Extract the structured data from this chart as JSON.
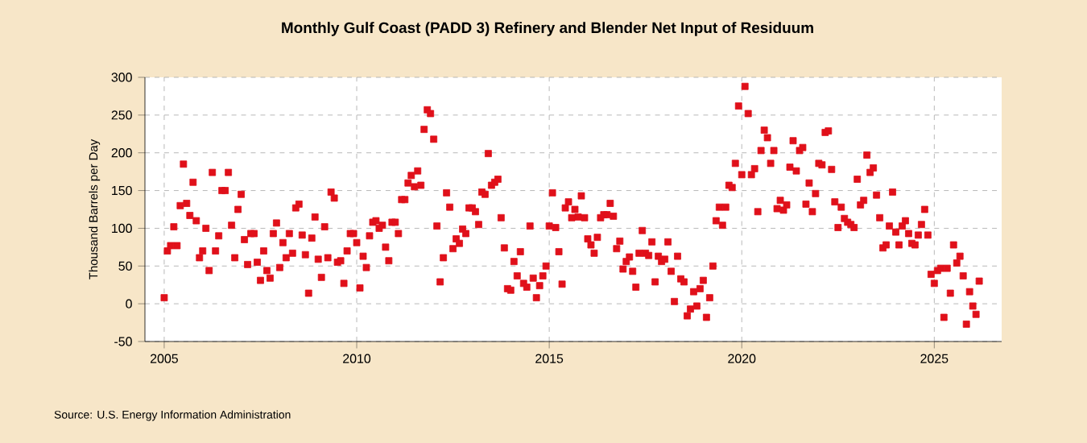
{
  "chart_data": {
    "type": "scatter",
    "title": "Monthly Gulf Coast (PADD 3) Refinery and Blender Net Input of Residuum",
    "ylabel": "Thousand Barrels per Day",
    "annotations": [
      "Source: U.S. Energy Information Administration"
    ],
    "x": [
      "2005-01",
      "2005-02",
      "2005-03",
      "2005-04",
      "2005-05",
      "2005-06",
      "2005-07",
      "2005-08",
      "2005-09",
      "2005-10",
      "2005-11",
      "2005-12",
      "2006-01",
      "2006-02",
      "2006-03",
      "2006-04",
      "2006-05",
      "2006-06",
      "2006-07",
      "2006-08",
      "2006-09",
      "2006-10",
      "2006-11",
      "2006-12",
      "2007-01",
      "2007-02",
      "2007-03",
      "2007-04",
      "2007-05",
      "2007-06",
      "2007-07",
      "2007-08",
      "2007-09",
      "2007-10",
      "2007-11",
      "2007-12",
      "2008-01",
      "2008-02",
      "2008-03",
      "2008-04",
      "2008-05",
      "2008-06",
      "2008-07",
      "2008-08",
      "2008-09",
      "2008-10",
      "2008-11",
      "2008-12",
      "2009-01",
      "2009-02",
      "2009-03",
      "2009-04",
      "2009-05",
      "2009-06",
      "2009-07",
      "2009-08",
      "2009-09",
      "2009-10",
      "2009-11",
      "2009-12",
      "2010-01",
      "2010-02",
      "2010-03",
      "2010-04",
      "2010-05",
      "2010-06",
      "2010-07",
      "2010-08",
      "2010-09",
      "2010-10",
      "2010-11",
      "2010-12",
      "2011-01",
      "2011-02",
      "2011-03",
      "2011-04",
      "2011-05",
      "2011-06",
      "2011-07",
      "2011-08",
      "2011-09",
      "2011-10",
      "2011-11",
      "2011-12",
      "2012-01",
      "2012-02",
      "2012-03",
      "2012-04",
      "2012-05",
      "2012-06",
      "2012-07",
      "2012-08",
      "2012-09",
      "2012-10",
      "2012-11",
      "2012-12",
      "2013-01",
      "2013-02",
      "2013-03",
      "2013-04",
      "2013-05",
      "2013-06",
      "2013-07",
      "2013-08",
      "2013-09",
      "2013-10",
      "2013-11",
      "2013-12",
      "2014-01",
      "2014-02",
      "2014-03",
      "2014-04",
      "2014-05",
      "2014-06",
      "2014-07",
      "2014-08",
      "2014-09",
      "2014-10",
      "2014-11",
      "2014-12",
      "2015-01",
      "2015-02",
      "2015-03",
      "2015-04",
      "2015-05",
      "2015-06",
      "2015-07",
      "2015-08",
      "2015-09",
      "2015-10",
      "2015-11",
      "2015-12",
      "2016-01",
      "2016-02",
      "2016-03",
      "2016-04",
      "2016-05",
      "2016-06",
      "2016-07",
      "2016-08",
      "2016-09",
      "2016-10",
      "2016-11",
      "2016-12",
      "2017-01",
      "2017-02",
      "2017-03",
      "2017-04",
      "2017-05",
      "2017-06",
      "2017-07",
      "2017-08",
      "2017-09",
      "2017-10",
      "2017-11",
      "2017-12",
      "2018-01",
      "2018-02",
      "2018-03",
      "2018-04",
      "2018-05",
      "2018-06",
      "2018-07",
      "2018-08",
      "2018-09",
      "2018-10",
      "2018-11",
      "2018-12",
      "2019-01",
      "2019-02",
      "2019-03",
      "2019-04",
      "2019-05",
      "2019-06",
      "2019-07",
      "2019-08",
      "2019-09",
      "2019-10",
      "2019-11",
      "2019-12",
      "2020-01",
      "2020-02",
      "2020-03",
      "2020-04",
      "2020-05",
      "2020-06",
      "2020-07",
      "2020-08",
      "2020-09",
      "2020-10",
      "2020-11",
      "2020-12",
      "2021-01",
      "2021-02",
      "2021-03",
      "2021-04",
      "2021-05",
      "2021-06",
      "2021-07",
      "2021-08",
      "2021-09",
      "2021-10",
      "2021-11",
      "2021-12",
      "2022-01",
      "2022-02",
      "2022-03",
      "2022-04",
      "2022-05",
      "2022-06",
      "2022-07",
      "2022-08",
      "2022-09",
      "2022-10",
      "2022-11",
      "2022-12",
      "2023-01",
      "2023-02",
      "2023-03",
      "2023-04",
      "2023-05",
      "2023-06",
      "2023-07",
      "2023-08",
      "2023-09",
      "2023-10",
      "2023-11",
      "2023-12",
      "2024-01",
      "2024-02",
      "2024-03",
      "2024-04",
      "2024-05",
      "2024-06",
      "2024-07",
      "2024-08",
      "2024-09",
      "2024-10",
      "2024-11",
      "2024-12",
      "2025-01",
      "2025-02",
      "2025-03",
      "2025-04",
      "2025-05",
      "2025-06",
      "2025-07",
      "2025-08",
      "2025-09",
      "2025-10",
      "2025-11",
      "2025-12",
      "2026-01",
      "2026-02",
      "2026-03"
    ],
    "values": [
      8,
      70,
      77,
      102,
      77,
      130,
      185,
      133,
      117,
      161,
      110,
      61,
      70,
      100,
      44,
      174,
      70,
      90,
      150,
      150,
      174,
      104,
      61,
      125,
      145,
      85,
      52,
      93,
      93,
      55,
      31,
      70,
      44,
      34,
      93,
      107,
      48,
      81,
      61,
      93,
      67,
      127,
      132,
      91,
      65,
      14,
      87,
      115,
      59,
      35,
      102,
      61,
      148,
      140,
      55,
      57,
      27,
      70,
      93,
      93,
      81,
      21,
      63,
      48,
      90,
      108,
      110,
      100,
      104,
      75,
      57,
      108,
      108,
      93,
      138,
      138,
      160,
      170,
      155,
      176,
      157,
      231,
      257,
      252,
      218,
      103,
      29,
      61,
      147,
      128,
      73,
      86,
      80,
      99,
      93,
      127,
      127,
      122,
      105,
      148,
      145,
      199,
      157,
      161,
      165,
      114,
      74,
      20,
      18,
      56,
      37,
      69,
      27,
      22,
      103,
      34,
      8,
      24,
      37,
      50,
      103,
      147,
      101,
      69,
      26,
      127,
      135,
      114,
      125,
      115,
      143,
      114,
      86,
      78,
      67,
      88,
      114,
      118,
      118,
      133,
      116,
      73,
      83,
      46,
      56,
      62,
      43,
      22,
      67,
      97,
      67,
      64,
      82,
      29,
      63,
      56,
      59,
      82,
      43,
      3,
      63,
      33,
      29,
      -16,
      -7,
      16,
      -3,
      20,
      31,
      -18,
      8,
      50,
      110,
      128,
      104,
      128,
      157,
      154,
      186,
      262,
      171,
      288,
      252,
      171,
      179,
      122,
      203,
      230,
      220,
      186,
      203,
      126,
      137,
      124,
      131,
      181,
      216,
      176,
      203,
      207,
      132,
      160,
      122,
      146,
      186,
      184,
      227,
      229,
      178,
      135,
      101,
      128,
      113,
      108,
      105,
      101,
      165,
      131,
      137,
      197,
      174,
      180,
      144,
      114,
      74,
      78,
      103,
      148,
      95,
      78,
      103,
      110,
      93,
      80,
      78,
      91,
      105,
      125,
      91,
      39,
      27,
      44,
      47,
      -18,
      47,
      14,
      78,
      54,
      63,
      37,
      -27,
      16,
      -3,
      -14,
      30
    ],
    "color": "#e0101a",
    "marker": "square",
    "grid": true,
    "xlim": [
      "2004-07",
      "2026-10"
    ],
    "xticks": [
      "2005",
      "2010",
      "2015",
      "2020",
      "2025"
    ],
    "ylim": [
      -50,
      300
    ],
    "yticks": [
      -50,
      0,
      50,
      100,
      150,
      200,
      250,
      300
    ]
  }
}
